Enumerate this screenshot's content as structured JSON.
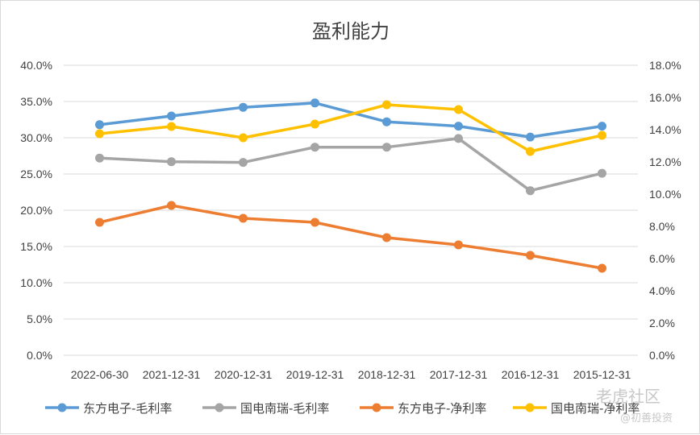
{
  "chart_data": {
    "type": "line",
    "title": "盈利能力",
    "categories": [
      "2022-06-30",
      "2021-12-31",
      "2020-12-31",
      "2019-12-31",
      "2018-12-31",
      "2017-12-31",
      "2016-12-31",
      "2015-12-31"
    ],
    "y_left": {
      "min": 0,
      "max": 40,
      "step": 5,
      "ticks": [
        "0.0%",
        "5.0%",
        "10.0%",
        "15.0%",
        "20.0%",
        "25.0%",
        "30.0%",
        "35.0%",
        "40.0%"
      ]
    },
    "y_right": {
      "min": 0,
      "max": 18,
      "step": 2,
      "ticks": [
        "0.0%",
        "2.0%",
        "4.0%",
        "6.0%",
        "8.0%",
        "10.0%",
        "12.0%",
        "14.0%",
        "16.0%",
        "18.0%"
      ]
    },
    "grid": true,
    "legend_position": "bottom",
    "series": [
      {
        "name": "东方电子-毛利率",
        "axis": "left",
        "color": "#5b9bd5",
        "values": [
          31.8,
          33.0,
          34.2,
          34.8,
          32.2,
          31.6,
          30.1,
          31.6
        ]
      },
      {
        "name": "国电南瑞-毛利率",
        "axis": "left",
        "color": "#a5a5a5",
        "values": [
          27.2,
          26.7,
          26.6,
          28.7,
          28.7,
          29.9,
          22.7,
          25.1
        ]
      },
      {
        "name": "东方电子-净利率",
        "axis": "right",
        "color": "#ed7d31",
        "values": [
          8.25,
          9.3,
          8.5,
          8.25,
          7.3,
          6.85,
          6.2,
          5.4
        ]
      },
      {
        "name": "国电南瑞-净利率",
        "axis": "right",
        "color": "#ffc000",
        "values": [
          13.75,
          14.2,
          13.5,
          14.35,
          15.55,
          15.25,
          12.65,
          13.65
        ]
      }
    ]
  },
  "watermark": {
    "brand": "老虎社区",
    "handle": "@初善投资"
  }
}
